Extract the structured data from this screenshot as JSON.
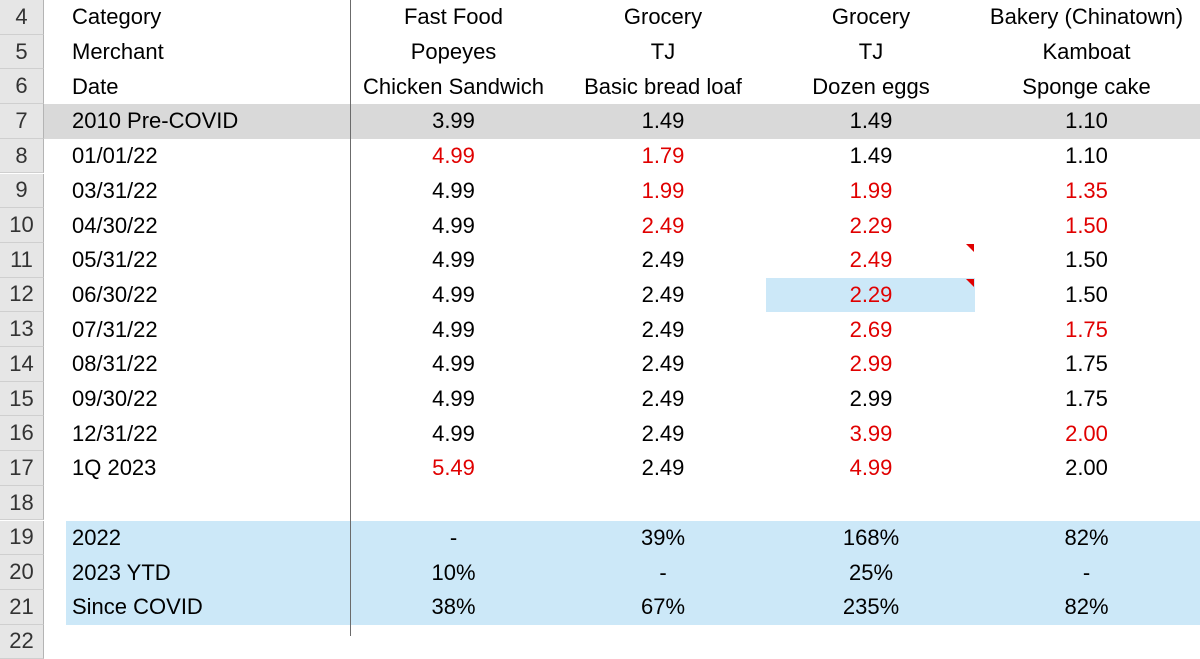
{
  "row_numbers": [
    "4",
    "5",
    "6",
    "7",
    "8",
    "9",
    "10",
    "11",
    "12",
    "13",
    "14",
    "15",
    "16",
    "17",
    "18",
    "19",
    "20",
    "21",
    "22"
  ],
  "header_rows": [
    {
      "label": "Category",
      "cols": [
        "Fast Food",
        "Grocery",
        "Grocery",
        "Bakery (Chinatown)"
      ]
    },
    {
      "label": "Merchant",
      "cols": [
        "Popeyes",
        "TJ",
        "TJ",
        "Kamboat"
      ]
    },
    {
      "label": "Date",
      "cols": [
        "Chicken Sandwich",
        "Basic bread loaf",
        "Dozen eggs",
        "Sponge cake"
      ]
    }
  ],
  "data_rows": [
    {
      "label": "2010 Pre-COVID",
      "values": [
        "3.99",
        "1.49",
        "1.49",
        "1.10"
      ],
      "red": [
        false,
        false,
        false,
        false
      ]
    },
    {
      "label": "01/01/22",
      "values": [
        "4.99",
        "1.79",
        "1.49",
        "1.10"
      ],
      "red": [
        true,
        true,
        false,
        false
      ]
    },
    {
      "label": "03/31/22",
      "values": [
        "4.99",
        "1.99",
        "1.99",
        "1.35"
      ],
      "red": [
        false,
        true,
        true,
        true
      ]
    },
    {
      "label": "04/30/22",
      "values": [
        "4.99",
        "2.49",
        "2.29",
        "1.50"
      ],
      "red": [
        false,
        true,
        true,
        true
      ]
    },
    {
      "label": "05/31/22",
      "values": [
        "4.99",
        "2.49",
        "2.49",
        "1.50"
      ],
      "red": [
        false,
        false,
        true,
        false
      ]
    },
    {
      "label": "06/30/22",
      "values": [
        "4.99",
        "2.49",
        "2.29",
        "1.50"
      ],
      "red": [
        false,
        false,
        true,
        false
      ]
    },
    {
      "label": "07/31/22",
      "values": [
        "4.99",
        "2.49",
        "2.69",
        "1.75"
      ],
      "red": [
        false,
        false,
        true,
        true
      ]
    },
    {
      "label": "08/31/22",
      "values": [
        "4.99",
        "2.49",
        "2.99",
        "1.75"
      ],
      "red": [
        false,
        false,
        true,
        false
      ]
    },
    {
      "label": "09/30/22",
      "values": [
        "4.99",
        "2.49",
        "2.99",
        "1.75"
      ],
      "red": [
        false,
        false,
        false,
        false
      ]
    },
    {
      "label": "12/31/22",
      "values": [
        "4.99",
        "2.49",
        "3.99",
        "2.00"
      ],
      "red": [
        false,
        false,
        true,
        true
      ]
    },
    {
      "label": "1Q 2023",
      "values": [
        "5.49",
        "2.49",
        "4.99",
        "2.00"
      ],
      "red": [
        true,
        false,
        true,
        false
      ]
    }
  ],
  "summary_rows": [
    {
      "label": "2022",
      "values": [
        "-",
        "39%",
        "168%",
        "82%"
      ]
    },
    {
      "label": "2023 YTD",
      "values": [
        "10%",
        "-",
        "25%",
        "-"
      ]
    },
    {
      "label": "Since COVID",
      "values": [
        "38%",
        "67%",
        "235%",
        "82%"
      ]
    }
  ],
  "colors": {
    "increase_red": "#e00000",
    "gray_band": "#d9d9d9",
    "blue_band": "#cce8f8",
    "comment_flag": "#e00000"
  }
}
